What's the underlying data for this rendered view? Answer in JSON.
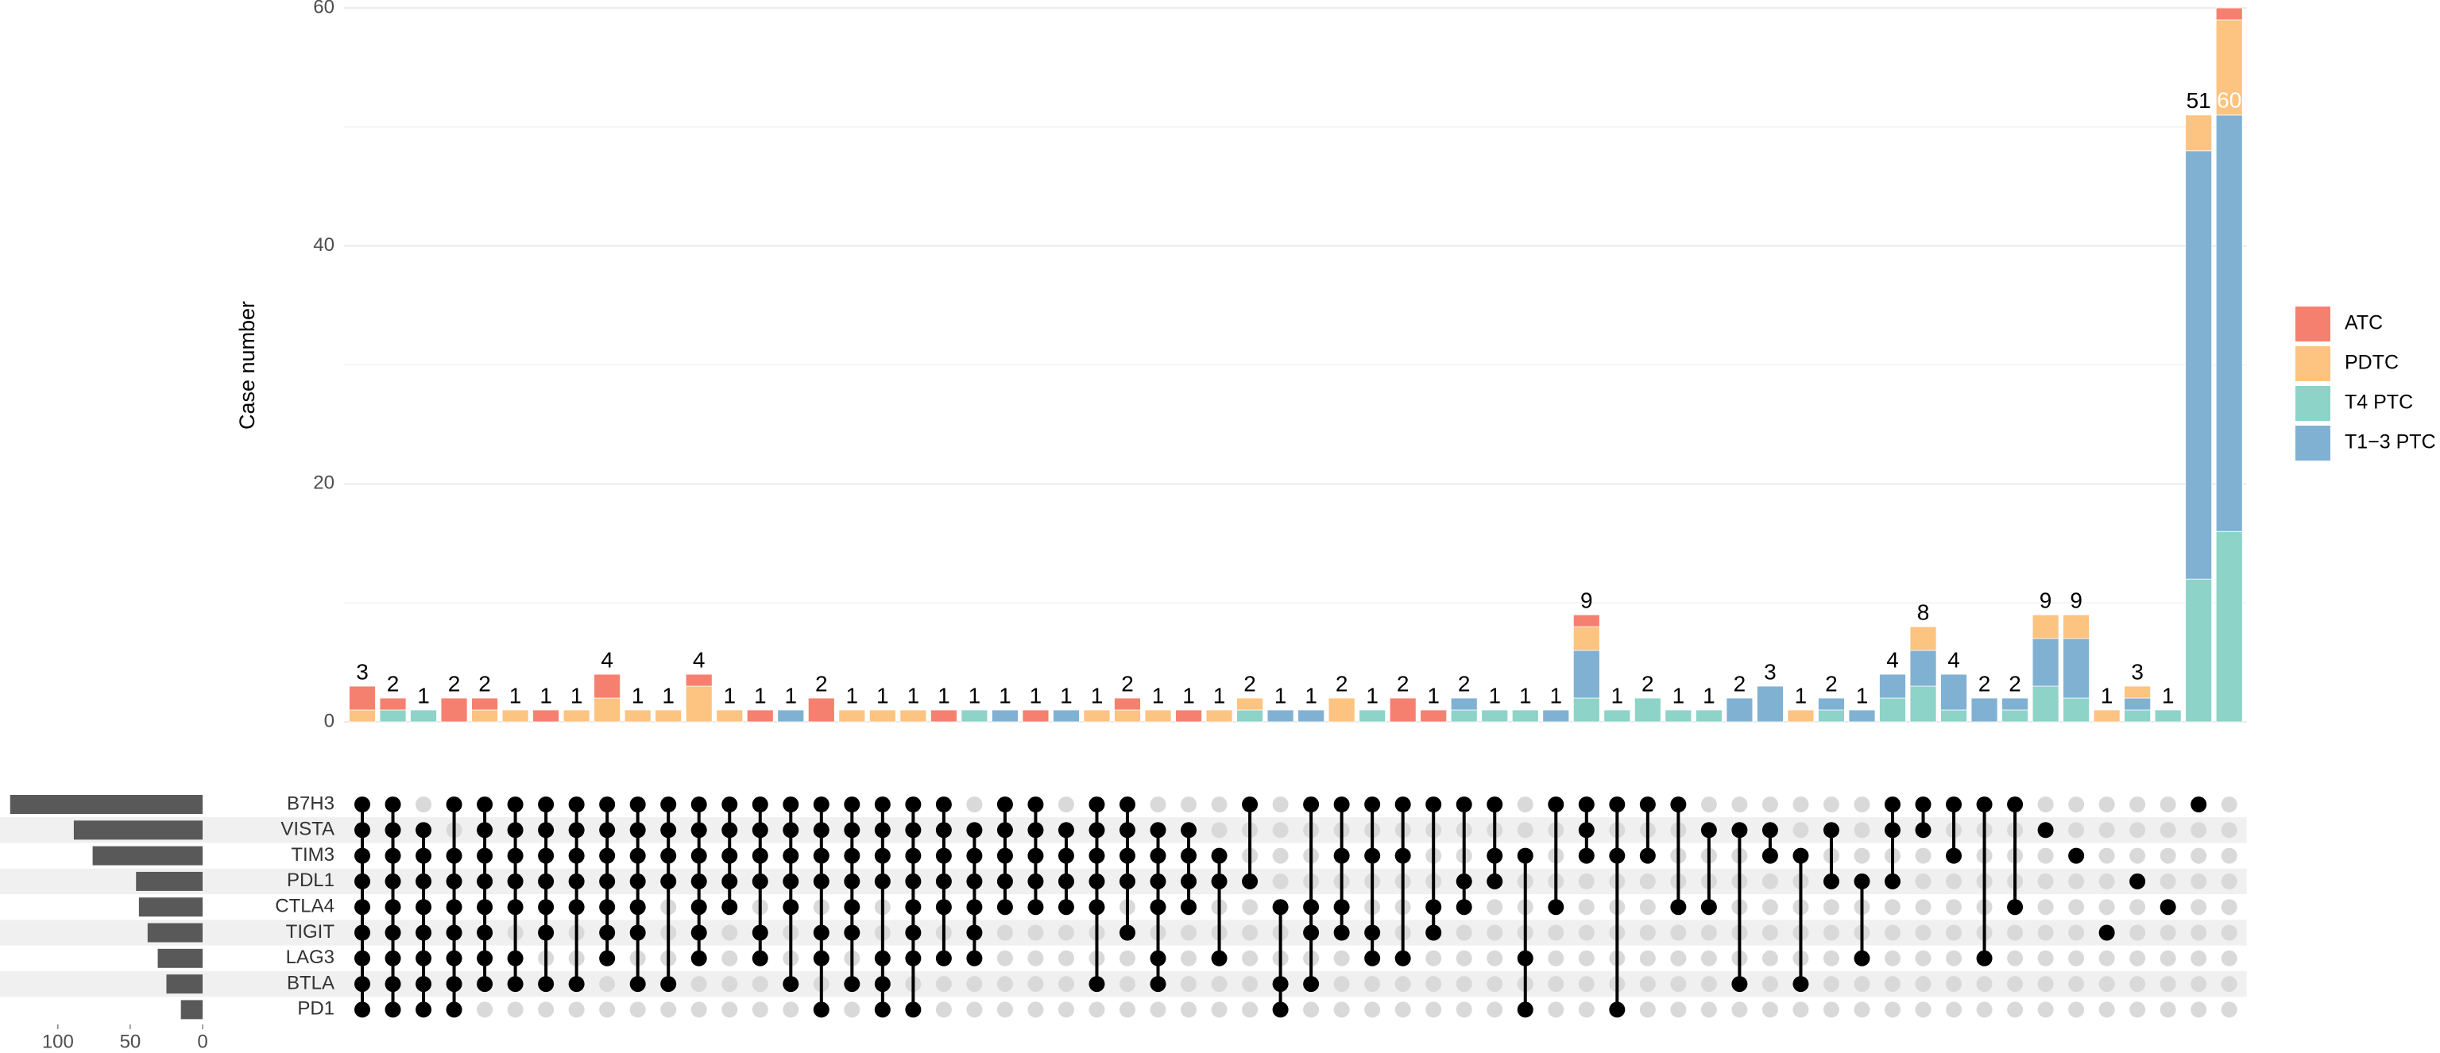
{
  "chart_data": {
    "type": "upset",
    "y_label": "Case number",
    "ylim": [
      0,
      60
    ],
    "yticks": [
      0,
      20,
      40,
      60
    ],
    "y_minor_grid": [
      10,
      30,
      50
    ],
    "grid": true,
    "legend_position": "right",
    "series": [
      {
        "name": "T4 PTC",
        "color": "#8dd3c7",
        "values": [
          0,
          1,
          1,
          0,
          0,
          0,
          0,
          0,
          0,
          0,
          0,
          0,
          0,
          0,
          0,
          0,
          0,
          0,
          0,
          0,
          1,
          0,
          0,
          0,
          0,
          0,
          0,
          0,
          0,
          1,
          0,
          0,
          0,
          1,
          0,
          0,
          1,
          1,
          1,
          0,
          2,
          1,
          2,
          1,
          1,
          0,
          0,
          0,
          1,
          0,
          2,
          3,
          1,
          0,
          1,
          3,
          2,
          0,
          1,
          1,
          12,
          16
        ]
      },
      {
        "name": "T1−3 PTC",
        "color": "#80b1d3",
        "values": [
          0,
          0,
          0,
          0,
          0,
          0,
          0,
          0,
          0,
          0,
          0,
          0,
          0,
          0,
          1,
          0,
          0,
          0,
          0,
          0,
          0,
          1,
          0,
          1,
          0,
          0,
          0,
          0,
          0,
          0,
          1,
          1,
          0,
          0,
          0,
          0,
          1,
          0,
          0,
          1,
          4,
          0,
          0,
          0,
          0,
          2,
          3,
          0,
          1,
          1,
          2,
          3,
          3,
          2,
          1,
          4,
          5,
          0,
          1,
          0,
          36,
          35
        ]
      },
      {
        "name": "PDTC",
        "color": "#fdc380",
        "values": [
          1,
          0,
          0,
          0,
          1,
          1,
          0,
          1,
          2,
          1,
          1,
          3,
          1,
          0,
          0,
          0,
          1,
          1,
          1,
          0,
          0,
          0,
          0,
          0,
          1,
          1,
          1,
          0,
          1,
          1,
          0,
          0,
          2,
          0,
          0,
          0,
          0,
          0,
          0,
          0,
          2,
          0,
          0,
          0,
          0,
          0,
          0,
          1,
          0,
          0,
          0,
          2,
          0,
          0,
          0,
          2,
          2,
          1,
          1,
          0,
          3,
          8
        ]
      },
      {
        "name": "ATC",
        "color": "#f6806f",
        "values": [
          2,
          1,
          0,
          2,
          1,
          0,
          1,
          0,
          2,
          0,
          0,
          1,
          0,
          1,
          0,
          2,
          0,
          0,
          0,
          1,
          0,
          0,
          1,
          0,
          0,
          1,
          0,
          1,
          0,
          0,
          0,
          0,
          0,
          0,
          2,
          1,
          0,
          0,
          0,
          0,
          1,
          0,
          0,
          0,
          0,
          0,
          0,
          0,
          0,
          0,
          0,
          0,
          0,
          0,
          0,
          0,
          0,
          0,
          0,
          0,
          0,
          1
        ]
      }
    ],
    "totals": [
      3,
      2,
      1,
      2,
      2,
      1,
      1,
      1,
      4,
      1,
      1,
      4,
      1,
      1,
      1,
      2,
      1,
      1,
      1,
      1,
      1,
      1,
      1,
      1,
      1,
      2,
      1,
      1,
      1,
      2,
      1,
      1,
      2,
      1,
      2,
      1,
      2,
      1,
      1,
      1,
      9,
      1,
      2,
      1,
      1,
      2,
      3,
      1,
      2,
      1,
      4,
      8,
      4,
      2,
      2,
      9,
      9,
      1,
      3,
      1,
      51,
      60
    ],
    "legend_order": [
      3,
      2,
      0,
      1
    ],
    "sets": [
      "B7H3",
      "VISTA",
      "TIM3",
      "PDL1",
      "CTLA4",
      "TIGIT",
      "LAG3",
      "BTLA",
      "PD1"
    ],
    "set_sizes": [
      133,
      89,
      76,
      46,
      44,
      38,
      31,
      25,
      15
    ],
    "set_size_xlim": [
      0,
      140
    ],
    "set_size_xticks": [
      100,
      50,
      0
    ],
    "set_size_color": "#595959",
    "matrix": [
      [
        1,
        1,
        1,
        1,
        1,
        1,
        1,
        1,
        1
      ],
      [
        1,
        1,
        1,
        1,
        1,
        1,
        1,
        1,
        1
      ],
      [
        0,
        1,
        1,
        1,
        1,
        1,
        1,
        1,
        1
      ],
      [
        1,
        0,
        1,
        1,
        1,
        1,
        1,
        1,
        1
      ],
      [
        1,
        1,
        1,
        1,
        1,
        1,
        1,
        1,
        0
      ],
      [
        1,
        1,
        1,
        1,
        1,
        0,
        1,
        1,
        0
      ],
      [
        1,
        1,
        1,
        1,
        1,
        1,
        0,
        1,
        0
      ],
      [
        1,
        1,
        1,
        1,
        1,
        0,
        0,
        1,
        0
      ],
      [
        1,
        1,
        1,
        1,
        1,
        1,
        1,
        0,
        0
      ],
      [
        1,
        1,
        1,
        1,
        1,
        1,
        0,
        1,
        0
      ],
      [
        1,
        1,
        1,
        1,
        0,
        0,
        0,
        1,
        0
      ],
      [
        1,
        1,
        1,
        1,
        1,
        1,
        1,
        0,
        0
      ],
      [
        1,
        1,
        1,
        1,
        1,
        0,
        0,
        0,
        0
      ],
      [
        1,
        1,
        1,
        1,
        0,
        1,
        1,
        0,
        0
      ],
      [
        1,
        1,
        1,
        1,
        1,
        0,
        0,
        1,
        0
      ],
      [
        1,
        1,
        1,
        1,
        0,
        1,
        1,
        0,
        1
      ],
      [
        1,
        1,
        1,
        1,
        1,
        1,
        0,
        1,
        0
      ],
      [
        1,
        1,
        1,
        1,
        0,
        0,
        1,
        1,
        1
      ],
      [
        1,
        1,
        1,
        1,
        1,
        1,
        1,
        0,
        1
      ],
      [
        1,
        1,
        1,
        1,
        1,
        0,
        1,
        0,
        0
      ],
      [
        0,
        1,
        1,
        1,
        1,
        1,
        1,
        0,
        0
      ],
      [
        1,
        1,
        1,
        1,
        1,
        0,
        0,
        0,
        0
      ],
      [
        1,
        1,
        1,
        1,
        1,
        0,
        0,
        0,
        0
      ],
      [
        0,
        1,
        1,
        1,
        1,
        0,
        0,
        0,
        0
      ],
      [
        1,
        1,
        1,
        1,
        1,
        0,
        0,
        1,
        0
      ],
      [
        1,
        1,
        1,
        1,
        0,
        1,
        0,
        0,
        0
      ],
      [
        0,
        1,
        1,
        1,
        1,
        0,
        1,
        1,
        0
      ],
      [
        0,
        1,
        1,
        1,
        1,
        0,
        0,
        0,
        0
      ],
      [
        0,
        0,
        1,
        1,
        0,
        0,
        1,
        0,
        0
      ],
      [
        1,
        0,
        0,
        1,
        0,
        0,
        0,
        0,
        0
      ],
      [
        0,
        0,
        0,
        0,
        1,
        0,
        0,
        1,
        1
      ],
      [
        1,
        0,
        0,
        0,
        1,
        1,
        0,
        1,
        0
      ],
      [
        1,
        0,
        1,
        0,
        1,
        1,
        0,
        0,
        0
      ],
      [
        1,
        0,
        1,
        0,
        0,
        1,
        1,
        0,
        0
      ],
      [
        1,
        0,
        1,
        0,
        0,
        0,
        1,
        0,
        0
      ],
      [
        1,
        0,
        0,
        0,
        1,
        1,
        0,
        0,
        0
      ],
      [
        1,
        0,
        0,
        1,
        1,
        0,
        0,
        0,
        0
      ],
      [
        1,
        0,
        1,
        1,
        0,
        0,
        0,
        0,
        0
      ],
      [
        0,
        0,
        1,
        0,
        0,
        0,
        1,
        0,
        1
      ],
      [
        1,
        0,
        0,
        0,
        1,
        0,
        0,
        0,
        0
      ],
      [
        1,
        1,
        1,
        0,
        0,
        0,
        0,
        0,
        0
      ],
      [
        1,
        0,
        1,
        0,
        0,
        0,
        0,
        0,
        1
      ],
      [
        1,
        0,
        1,
        0,
        0,
        0,
        0,
        0,
        0
      ],
      [
        1,
        0,
        0,
        0,
        1,
        0,
        0,
        0,
        0
      ],
      [
        0,
        1,
        0,
        0,
        1,
        0,
        0,
        0,
        0
      ],
      [
        0,
        1,
        0,
        0,
        0,
        0,
        0,
        1,
        0
      ],
      [
        0,
        1,
        1,
        0,
        0,
        0,
        0,
        0,
        0
      ],
      [
        0,
        0,
        1,
        0,
        0,
        0,
        0,
        1,
        0
      ],
      [
        0,
        1,
        0,
        1,
        0,
        0,
        0,
        0,
        0
      ],
      [
        0,
        0,
        0,
        1,
        0,
        0,
        1,
        0,
        0
      ],
      [
        1,
        1,
        0,
        1,
        0,
        0,
        0,
        0,
        0
      ],
      [
        1,
        1,
        0,
        0,
        0,
        0,
        0,
        0,
        0
      ],
      [
        1,
        0,
        1,
        0,
        0,
        0,
        0,
        0,
        0
      ],
      [
        1,
        0,
        0,
        0,
        0,
        0,
        1,
        0,
        0
      ],
      [
        1,
        0,
        0,
        0,
        1,
        0,
        0,
        0,
        0
      ],
      [
        0,
        1,
        0,
        0,
        0,
        0,
        0,
        0,
        0
      ],
      [
        0,
        0,
        1,
        0,
        0,
        0,
        0,
        0,
        0
      ],
      [
        0,
        0,
        0,
        0,
        0,
        1,
        0,
        0,
        0
      ],
      [
        0,
        0,
        0,
        1,
        0,
        0,
        0,
        0,
        0
      ],
      [
        0,
        0,
        0,
        0,
        1,
        0,
        0,
        0,
        0
      ],
      [
        1,
        0,
        0,
        0,
        0,
        0,
        0,
        0,
        0
      ],
      [
        0,
        0,
        0,
        0,
        0,
        0,
        0,
        0,
        0
      ]
    ]
  }
}
